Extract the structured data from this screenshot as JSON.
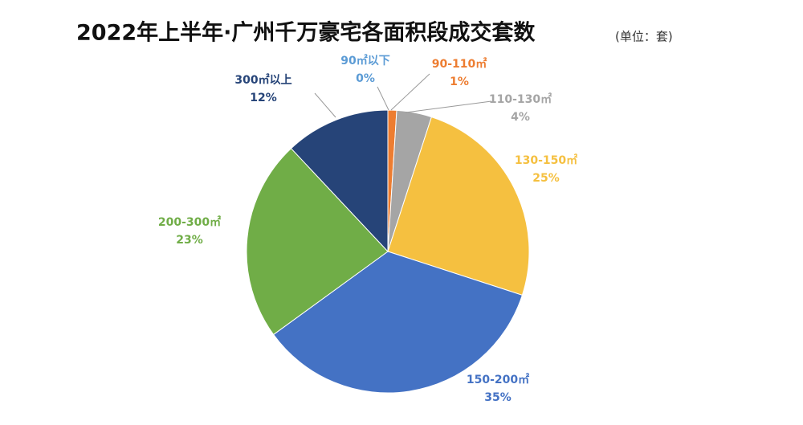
{
  "chart_data": {
    "type": "pie",
    "title": "2022年上半年·广州千万豪宅各面积段成交套数",
    "subtitle": "(单位：套)",
    "categories": [
      "90㎡以下",
      "90-110㎡",
      "110-130㎡",
      "130-150㎡",
      "150-200㎡",
      "200-300㎡",
      "300㎡以上"
    ],
    "values": [
      0,
      1,
      4,
      25,
      35,
      23,
      12
    ],
    "value_labels": [
      "0%",
      "1%",
      "4%",
      "25%",
      "35%",
      "23%",
      "12%"
    ],
    "colors": [
      "#5b9bd5",
      "#ed7d31",
      "#a5a5a5",
      "#f5c040",
      "#4472c4",
      "#70ad47",
      "#264478"
    ]
  }
}
